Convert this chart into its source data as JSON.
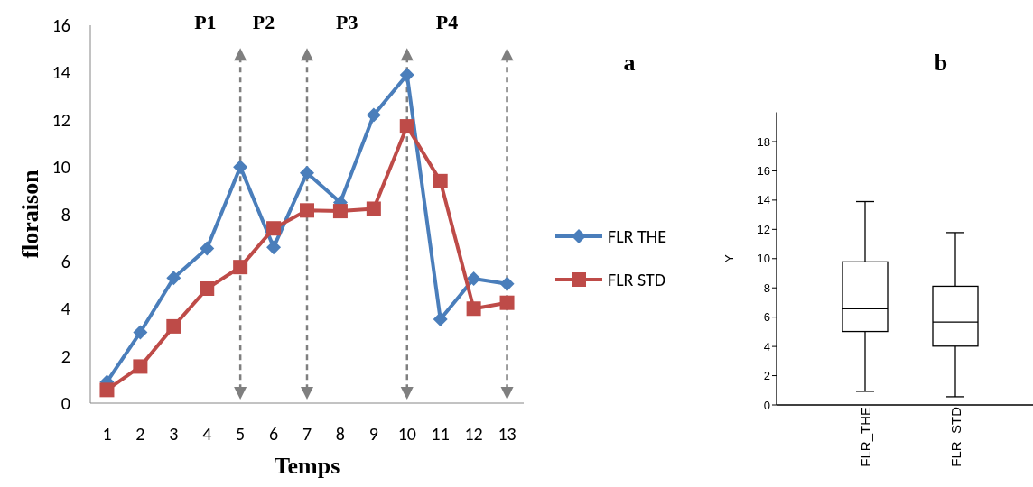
{
  "chart_data": [
    {
      "type": "line",
      "xlabel": "Temps",
      "ylabel": "floraison",
      "categories": [
        "1",
        "2",
        "3",
        "4",
        "5",
        "6",
        "7",
        "8",
        "9",
        "10",
        "11",
        "12",
        "13"
      ],
      "series": [
        {
          "name": "FLR THE",
          "color": "#4a7ebb",
          "marker": "diamond",
          "values": [
            0.9,
            3.0,
            5.3,
            6.55,
            10.0,
            6.6,
            9.75,
            8.5,
            12.2,
            13.9,
            3.55,
            5.27,
            5.05
          ]
        },
        {
          "name": "FLR STD",
          "color": "#be4b48",
          "marker": "square",
          "values": [
            0.56,
            1.55,
            3.25,
            4.85,
            5.76,
            7.4,
            8.16,
            8.13,
            8.23,
            11.72,
            9.4,
            4.0,
            4.25
          ]
        }
      ],
      "ylim": [
        0,
        16
      ],
      "yticks": [
        0,
        2,
        4,
        6,
        8,
        10,
        12,
        14,
        16
      ],
      "grid": false,
      "legend": "right",
      "ref_lines": [
        {
          "axis": "x",
          "value": "5",
          "color": "#7f7f7f",
          "line_style": "dashed"
        },
        {
          "axis": "x",
          "value": "7",
          "color": "#7f7f7f",
          "line_style": "dashed"
        },
        {
          "axis": "x",
          "value": "10",
          "color": "#7f7f7f",
          "line_style": "dashed"
        },
        {
          "axis": "x",
          "value": "13",
          "color": "#7f7f7f",
          "line_style": "dashed"
        }
      ],
      "annotations": [
        "P1",
        "P2",
        "P3",
        "P4",
        "a"
      ]
    },
    {
      "type": "box",
      "title": "b",
      "ylabel": "Y",
      "categories": [
        "FLR_THE",
        "FLR_STD"
      ],
      "boxes": [
        {
          "low": 0.93,
          "q1": 5.02,
          "median": 6.57,
          "q3": 9.78,
          "high": 13.9
        },
        {
          "low": 0.56,
          "q1": 4.02,
          "median": 5.66,
          "q3": 8.11,
          "high": 11.78
        }
      ],
      "ylim": [
        0,
        20
      ],
      "yticks": [
        0,
        2,
        4,
        6,
        8,
        10,
        12,
        14,
        16,
        18
      ],
      "grid": false
    }
  ]
}
